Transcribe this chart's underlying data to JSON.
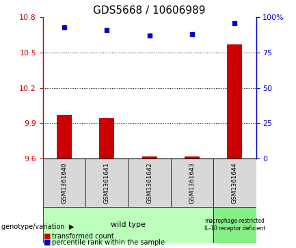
{
  "title": "GDS5668 / 10606989",
  "samples": [
    "GSM1361640",
    "GSM1361641",
    "GSM1361642",
    "GSM1361643",
    "GSM1361644"
  ],
  "transformed_counts": [
    9.97,
    9.94,
    9.615,
    9.615,
    10.57
  ],
  "percentile_ranks": [
    93,
    91,
    87,
    88,
    96
  ],
  "ylim_left": [
    9.6,
    10.8
  ],
  "ylim_right": [
    0,
    100
  ],
  "yticks_left": [
    9.6,
    9.9,
    10.2,
    10.5,
    10.8
  ],
  "yticks_right": [
    0,
    25,
    50,
    75,
    100
  ],
  "ytick_labels_left": [
    "9.6",
    "9.9",
    "10.2",
    "10.5",
    "10.8"
  ],
  "ytick_labels_right": [
    "0",
    "25",
    "50",
    "75",
    "100%"
  ],
  "bar_color": "#cc0000",
  "dot_color": "#0000cc",
  "bar_bottom": 9.6,
  "hlines": [
    9.9,
    10.2,
    10.5
  ],
  "group1_indices": [
    0,
    1,
    2,
    3
  ],
  "group2_indices": [
    4
  ],
  "group1_label": "wild type",
  "group2_label": "macrophage-restricted\nIL-10 receptor deficient",
  "group1_color": "#bbffbb",
  "group2_color": "#88ee88",
  "genotype_label": "genotype/variation",
  "legend_bar_label": "transformed count",
  "legend_dot_label": "percentile rank within the sample",
  "sample_box_color": "#d8d8d8",
  "title_fontsize": 11,
  "bar_width": 0.35
}
